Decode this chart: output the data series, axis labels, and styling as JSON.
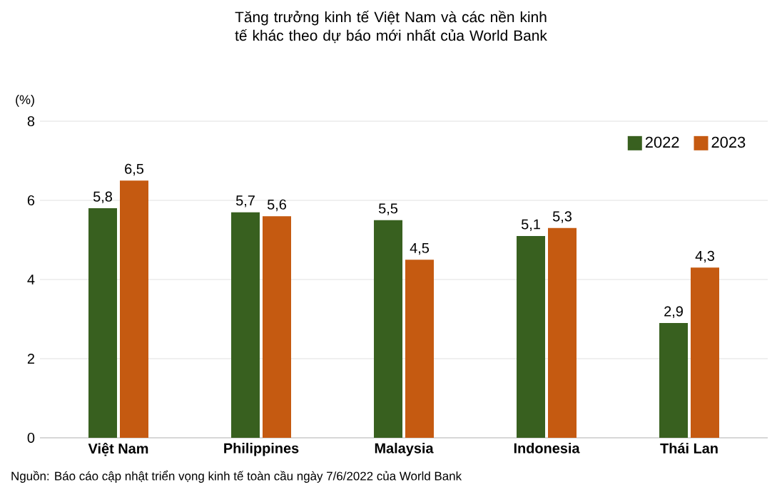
{
  "chart_data": {
    "type": "bar",
    "title": "Tăng trưởng kinh tế Việt Nam và các nền kinh tế khác theo dự báo mới nhất của World Bank",
    "ylabel": "(%)",
    "categories": [
      "Việt Nam",
      "Philippines",
      "Malaysia",
      "Indonesia",
      "Thái Lan"
    ],
    "series": [
      {
        "name": "2022",
        "color": "#38601f",
        "values": [
          5.8,
          5.7,
          5.5,
          5.1,
          2.9
        ],
        "value_labels": [
          "5,8",
          "5,7",
          "5,5",
          "5,1",
          "2,9"
        ]
      },
      {
        "name": "2023",
        "color": "#c55a11",
        "values": [
          6.5,
          5.6,
          4.5,
          5.3,
          4.3
        ],
        "value_labels": [
          "6,5",
          "5,6",
          "4,5",
          "5,3",
          "4,3"
        ]
      }
    ],
    "ylim": [
      0,
      8
    ],
    "yticks": [
      0,
      2,
      4,
      6,
      8
    ],
    "grid": "y",
    "legend": "top right",
    "annotations": [
      "Nguồn: Báo cáo cập nhật triển vọng kinh tế toàn cầu ngày 7/6/2022 của World Bank"
    ]
  }
}
